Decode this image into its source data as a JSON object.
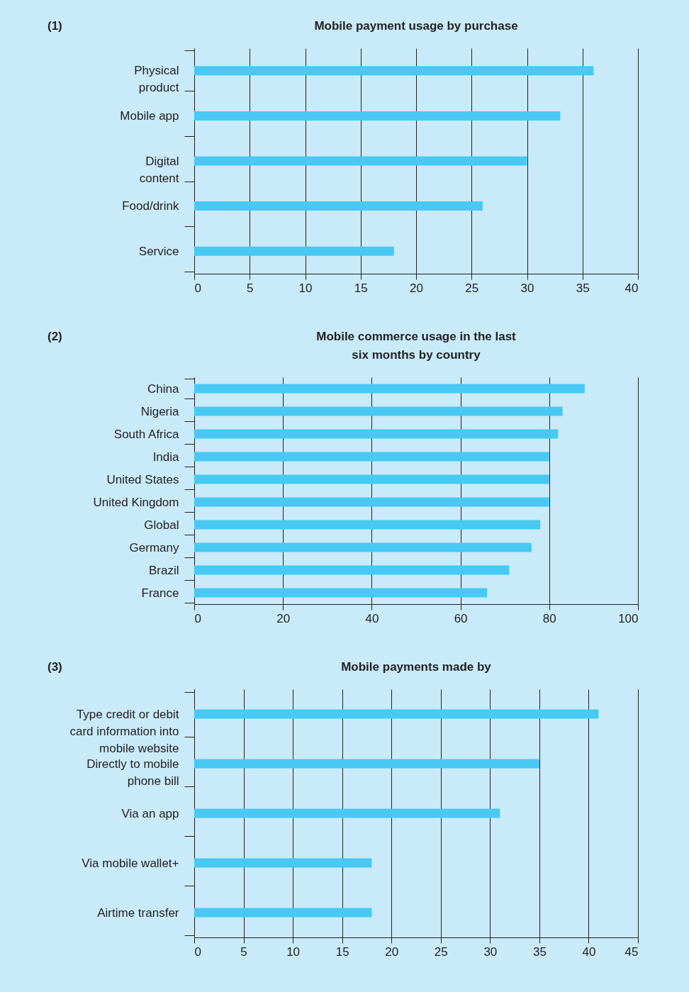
{
  "chart_data": [
    {
      "type": "bar",
      "orientation": "horizontal",
      "title": "Mobile payment usage by purchase",
      "annotations": [
        "(1)"
      ],
      "categories": [
        "Physical product",
        "Mobile app",
        "Digital content",
        "Food/drink",
        "Service"
      ],
      "values": [
        36,
        33,
        30,
        26,
        18
      ],
      "color": "#47c9f3",
      "xlim": [
        0,
        40
      ],
      "xticks": [
        0,
        5,
        10,
        15,
        20,
        25,
        30,
        35,
        40
      ],
      "grid": "x"
    },
    {
      "type": "bar",
      "orientation": "horizontal",
      "title": "Mobile commerce usage in the last six months by country",
      "annotations": [
        "(2)"
      ],
      "categories": [
        "China",
        "Nigeria",
        "South Africa",
        "India",
        "United States",
        "United Kingdom",
        "Global",
        "Germany",
        "Brazil",
        "France"
      ],
      "values": [
        88,
        83,
        82,
        80,
        80,
        80,
        78,
        76,
        71,
        66
      ],
      "color": "#47c9f3",
      "xlim": [
        0,
        100
      ],
      "xticks": [
        0,
        20,
        40,
        60,
        80,
        100
      ],
      "grid": "x"
    },
    {
      "type": "bar",
      "orientation": "horizontal",
      "title": "Mobile payments made by",
      "annotations": [
        "(3)"
      ],
      "categories": [
        "Type credit or debit card information into mobile website",
        "Directly to mobile phone bill",
        "Via an app",
        "Via mobile wallet+",
        "Airtime transfer"
      ],
      "values": [
        41,
        35,
        31,
        18,
        18
      ],
      "color": "#47c9f3",
      "xlim": [
        0,
        45
      ],
      "xticks": [
        0,
        5,
        10,
        15,
        20,
        25,
        30,
        35,
        40,
        45
      ],
      "grid": "x"
    }
  ]
}
